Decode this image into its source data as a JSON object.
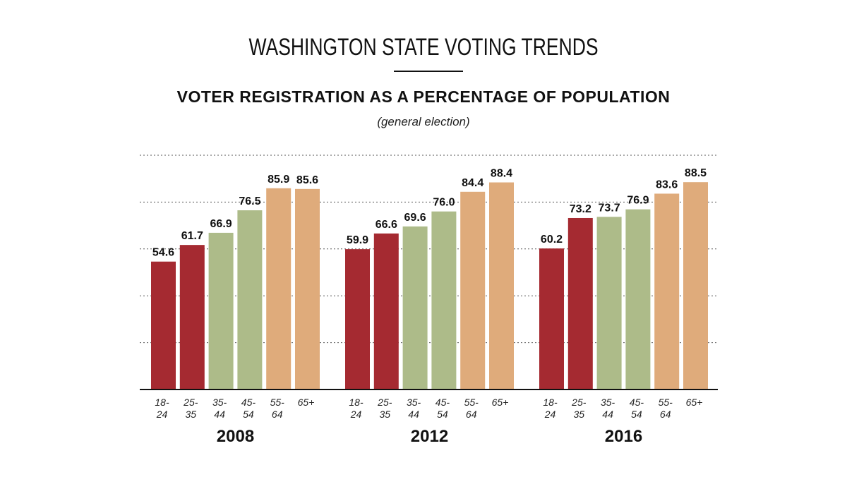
{
  "header": {
    "title": "WASHINGTON STATE VOTING TRENDS",
    "subtitle": "VOTER REGISTRATION AS A PERCENTAGE OF POPULATION",
    "note": "(general election)"
  },
  "colors": {
    "young": "#a52a31",
    "middle": "#adbb89",
    "older": "#dfab7b",
    "gridline": "#555555",
    "axis": "#111111"
  },
  "chart_data": {
    "type": "bar",
    "ylim": [
      0,
      100
    ],
    "grid": true,
    "categories": [
      {
        "line1": "18-",
        "line2": "24",
        "group": "young"
      },
      {
        "line1": "25-",
        "line2": "35",
        "group": "young"
      },
      {
        "line1": "35-",
        "line2": "44",
        "group": "middle"
      },
      {
        "line1": "45-",
        "line2": "54",
        "group": "middle"
      },
      {
        "line1": "55-",
        "line2": "64",
        "group": "older"
      },
      {
        "line1": "65+",
        "line2": "",
        "group": "older"
      }
    ],
    "groups": [
      {
        "year": "2008",
        "values": [
          54.6,
          61.7,
          66.9,
          76.5,
          85.9,
          85.6
        ],
        "labels": [
          "54.6",
          "61.7",
          "66.9",
          "76.5",
          "85.9",
          "85.6"
        ]
      },
      {
        "year": "2012",
        "values": [
          59.9,
          66.6,
          69.6,
          76.0,
          84.4,
          88.4
        ],
        "labels": [
          "59.9",
          "66.6",
          "69.6",
          "76.0",
          "84.4",
          "88.4"
        ]
      },
      {
        "year": "2016",
        "values": [
          60.2,
          73.2,
          73.7,
          76.9,
          83.6,
          88.5
        ],
        "labels": [
          "60.2",
          "73.2",
          "73.7",
          "76.9",
          "83.6",
          "88.5"
        ]
      }
    ]
  }
}
